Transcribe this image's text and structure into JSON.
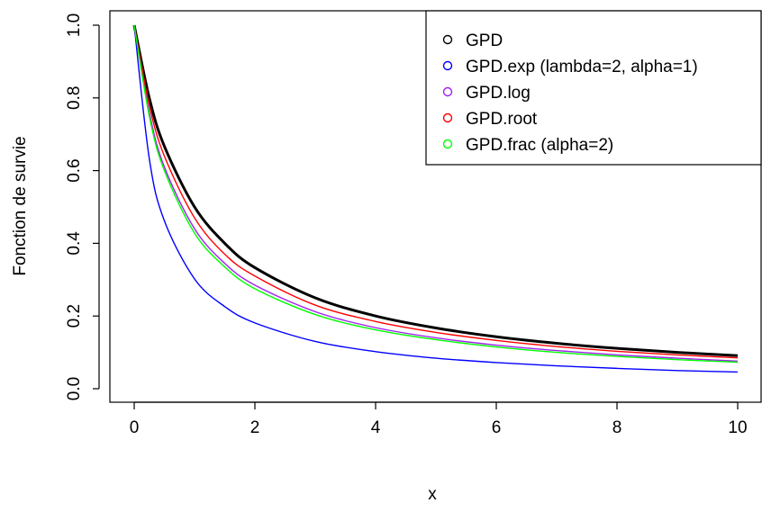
{
  "chart_data": {
    "type": "line",
    "xlabel": "x",
    "ylabel": "Fonction de survie",
    "xlim": [
      0,
      10
    ],
    "ylim": [
      0,
      1
    ],
    "x_ticks": [
      "0",
      "2",
      "4",
      "6",
      "8",
      "10"
    ],
    "y_ticks": [
      "0.0",
      "0.2",
      "0.4",
      "0.6",
      "0.8",
      "1.0"
    ],
    "grid": false,
    "legend_position": "top-right",
    "series": [
      {
        "name": "GPD",
        "color": "#000000",
        "x": [
          0,
          0.25,
          0.5,
          1,
          1.5,
          2,
          3,
          4,
          5,
          6,
          7,
          8,
          9,
          10
        ],
        "y": [
          1.0,
          0.8,
          0.667,
          0.5,
          0.4,
          0.333,
          0.25,
          0.2,
          0.167,
          0.143,
          0.125,
          0.111,
          0.1,
          0.091
        ]
      },
      {
        "name": "GPD.exp (lambda=2, alpha=1)",
        "color": "#0000ff",
        "x": [
          0,
          0.25,
          0.5,
          1,
          1.5,
          2,
          3,
          4,
          5,
          6,
          7,
          8,
          9,
          10
        ],
        "y": [
          1.0,
          0.633,
          0.462,
          0.302,
          0.226,
          0.181,
          0.13,
          0.102,
          0.084,
          0.072,
          0.063,
          0.056,
          0.05,
          0.046
        ]
      },
      {
        "name": "GPD.log",
        "color": "#a020f0",
        "x": [
          0,
          0.25,
          0.5,
          1,
          1.5,
          2,
          3,
          4,
          5,
          6,
          7,
          8,
          9,
          10
        ],
        "y": [
          1.0,
          0.76,
          0.61,
          0.44,
          0.345,
          0.285,
          0.212,
          0.168,
          0.14,
          0.12,
          0.105,
          0.093,
          0.084,
          0.076
        ]
      },
      {
        "name": "GPD.root",
        "color": "#ff0000",
        "x": [
          0,
          0.25,
          0.5,
          1,
          1.5,
          2,
          3,
          4,
          5,
          6,
          7,
          8,
          9,
          10
        ],
        "y": [
          1.0,
          0.78,
          0.64,
          0.47,
          0.37,
          0.31,
          0.23,
          0.185,
          0.155,
          0.133,
          0.116,
          0.103,
          0.093,
          0.085
        ]
      },
      {
        "name": "GPD.frac (alpha=2)",
        "color": "#00ff00",
        "x": [
          0,
          0.25,
          0.5,
          1,
          1.5,
          2,
          3,
          4,
          5,
          6,
          7,
          8,
          9,
          10
        ],
        "y": [
          1.0,
          0.75,
          0.6,
          0.428,
          0.335,
          0.275,
          0.204,
          0.162,
          0.135,
          0.115,
          0.1,
          0.089,
          0.08,
          0.073
        ]
      }
    ]
  }
}
